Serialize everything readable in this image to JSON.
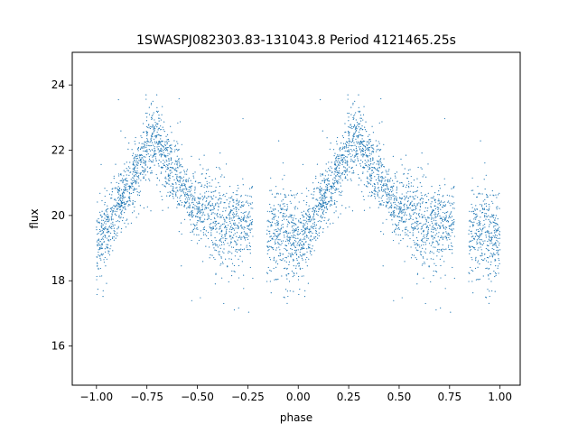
{
  "chart_data": {
    "type": "scatter",
    "title": "1SWASPJ082303.83-131043.8 Period 4121465.25s",
    "xlabel": "phase",
    "ylabel": "flux",
    "xlim": [
      -1.12,
      1.1
    ],
    "ylim": [
      14.8,
      25.0
    ],
    "xticks": [
      -1.0,
      -0.75,
      -0.5,
      -0.25,
      0.0,
      0.25,
      0.5,
      0.75,
      1.0
    ],
    "xtick_labels": [
      "−1.00",
      "−0.75",
      "−0.50",
      "−0.25",
      "0.00",
      "0.25",
      "0.50",
      "0.75",
      "1.00"
    ],
    "yticks": [
      16,
      18,
      20,
      22,
      24
    ],
    "ytick_labels": [
      "16",
      "18",
      "20",
      "22",
      "24"
    ],
    "grid": false,
    "marker_color": "#1f77b4",
    "phase_profile": {
      "phase": [
        0.0,
        0.05,
        0.1,
        0.15,
        0.2,
        0.25,
        0.3,
        0.35,
        0.4,
        0.45,
        0.5,
        0.55,
        0.6,
        0.65,
        0.7,
        0.75,
        0.85,
        0.9,
        0.95,
        1.0
      ],
      "flux": [
        19.2,
        19.6,
        20.2,
        20.8,
        21.4,
        22.0,
        22.2,
        21.6,
        21.2,
        20.6,
        20.2,
        20.3,
        19.7,
        19.6,
        19.8,
        19.8,
        19.4,
        19.6,
        19.3,
        19.2
      ],
      "scatter": [
        0.6,
        0.5,
        0.5,
        0.5,
        0.5,
        0.6,
        0.6,
        0.5,
        0.5,
        0.5,
        0.5,
        0.6,
        0.7,
        0.7,
        0.6,
        0.6,
        0.7,
        0.7,
        0.8,
        0.6
      ]
    },
    "note_series": "phase-folded light curve plotted twice, over phase -1..0 and 0..1"
  }
}
